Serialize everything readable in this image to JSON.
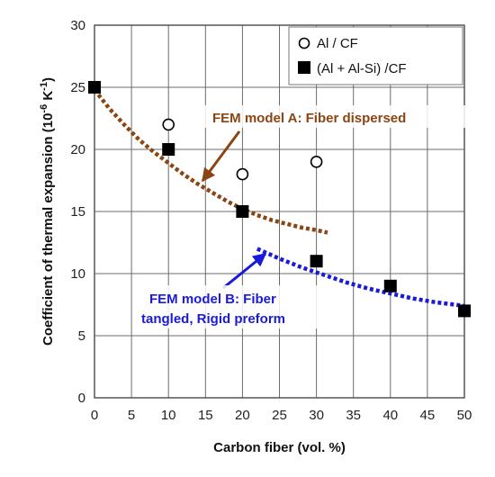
{
  "chart_data": {
    "type": "scatter",
    "xlabel": "Carbon fiber (vol. %)",
    "ylabel": {
      "prefix": "Coefficient of thermal expansion (10",
      "exp": "-6",
      "mid": " K",
      "exp2": "-1",
      "suffix": ")"
    },
    "xlim": [
      0,
      50
    ],
    "ylim": [
      0,
      30
    ],
    "xticks": [
      "0",
      "5",
      "10",
      "15",
      "20",
      "25",
      "30",
      "35",
      "40",
      "45",
      "50"
    ],
    "yticks": [
      "0",
      "5",
      "10",
      "15",
      "20",
      "25",
      "30"
    ],
    "grid": true,
    "legend_position": "top-right",
    "series": [
      {
        "name": "Al / CF",
        "marker": "open-circle",
        "x": [
          0,
          10,
          20,
          30
        ],
        "y": [
          25,
          22,
          18,
          19
        ]
      },
      {
        "name": "(Al + Al-Si) /CF",
        "marker": "filled-square",
        "x": [
          0,
          10,
          20,
          30,
          40,
          50
        ],
        "y": [
          25,
          20,
          15,
          11,
          9,
          7
        ]
      }
    ],
    "fits": [
      {
        "label": "FEM model A: Fiber dispersed",
        "color": "#8b4513",
        "x": [
          0,
          2,
          4,
          6,
          8,
          10,
          12,
          14,
          16,
          18,
          20,
          22,
          24,
          26,
          28,
          30,
          31.5
        ],
        "y": [
          24.8,
          23.3,
          22.0,
          20.8,
          19.8,
          18.9,
          18.0,
          17.2,
          16.5,
          15.8,
          15.2,
          14.7,
          14.3,
          14.0,
          13.7,
          13.5,
          13.3
        ]
      },
      {
        "label_lines": [
          "FEM model B: Fiber",
          "tangled, Rigid preform"
        ],
        "color": "#1a1adb",
        "x": [
          22,
          25,
          28,
          31,
          34,
          37,
          40,
          43,
          46,
          50
        ],
        "y": [
          12.0,
          11.2,
          10.5,
          9.9,
          9.3,
          8.8,
          8.4,
          8.0,
          7.7,
          7.4
        ]
      }
    ]
  }
}
